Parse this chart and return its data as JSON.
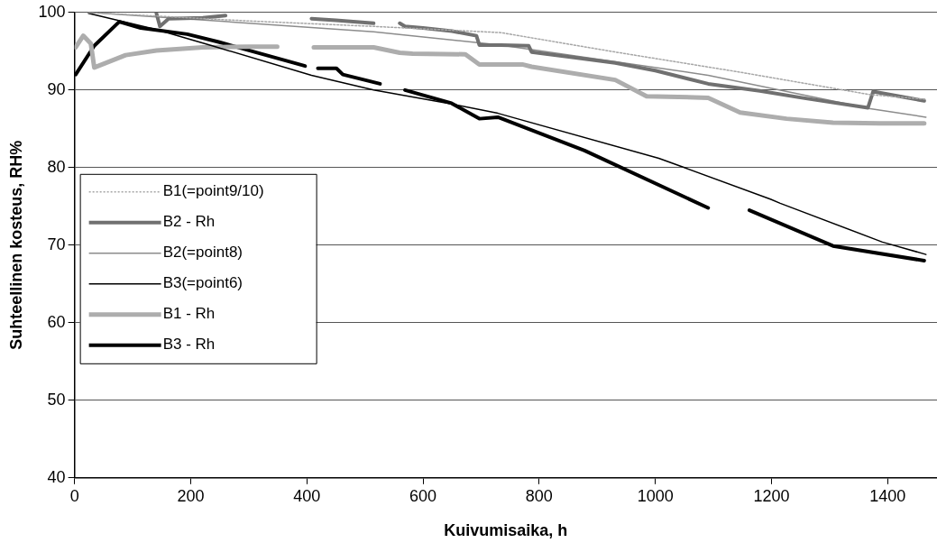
{
  "chart_data": {
    "type": "line",
    "xlabel": "Kuivumisaika, h",
    "ylabel": "Suhteellinen kosteus, RH%",
    "xlim": [
      0,
      1485
    ],
    "xticks": [
      0,
      200,
      400,
      600,
      800,
      1000,
      1200,
      1400
    ],
    "ylim": [
      40,
      100
    ],
    "yticks": [
      40,
      50,
      60,
      70,
      80,
      90,
      100
    ],
    "grid": "y",
    "legend": "left",
    "marker": "none",
    "series": [
      {
        "name": "B1(=point9/10)",
        "color": "#a6a6a6",
        "line_style": "dotted",
        "x": [
          24,
          300,
          515,
          734,
          931,
          1146,
          1370,
          1466
        ],
        "values": [
          100,
          98.9,
          98.2,
          97.4,
          94.9,
          92.3,
          89.4,
          88.8
        ]
      },
      {
        "name": "B2 - Rh",
        "color": "#707070",
        "line_style": "solid",
        "x": [
          141,
          147,
          162,
          221,
          260,
          300,
          408,
          450,
          515,
          540,
          560,
          569,
          600,
          650,
          692,
          697,
          734,
          782,
          787,
          860,
          931,
          1000,
          1091,
          1180,
          1252,
          1366,
          1375,
          1420,
          1463
        ],
        "values": [
          99.9,
          98.2,
          99.2,
          99.3,
          99.6,
          null,
          99.2,
          99,
          98.6,
          null,
          98.6,
          98.2,
          98,
          97.6,
          97,
          95.8,
          95.8,
          95.7,
          94.9,
          94.2,
          93.5,
          92.5,
          90.8,
          89.9,
          89,
          87.7,
          89.8,
          89.2,
          88.6
        ]
      },
      {
        "name": "B2(=point8)",
        "color": "#8c8c8c",
        "line_style": "solid",
        "x": [
          24,
          264,
          515,
          734,
          798,
          1091,
          1370,
          1466
        ],
        "values": [
          100,
          98.8,
          97.5,
          95.8,
          95.1,
          91.9,
          87.6,
          86.5
        ]
      },
      {
        "name": "B3(=point6)",
        "color": "#000000",
        "line_style": "solid",
        "x": [
          24,
          141,
          237,
          408,
          515,
          649,
          729,
          1006,
          1050,
          1199,
          1215,
          1391,
          1466
        ],
        "values": [
          99.9,
          97.8,
          95.7,
          91.9,
          90,
          88.2,
          87,
          81.2,
          80,
          75.9,
          75.4,
          70.4,
          68.8
        ]
      },
      {
        "name": "B1 - Rh",
        "color": "#adadad",
        "line_style": "solid",
        "x": [
          2,
          15,
          28,
          34,
          88,
          141,
          221,
          301,
          349,
          380,
          412,
          515,
          560,
          582,
          673,
          697,
          771,
          787,
          931,
          985,
          1091,
          1146,
          1226,
          1306,
          1386,
          1463
        ],
        "values": [
          95.5,
          97,
          96,
          92.9,
          94.5,
          95.1,
          95.5,
          95.6,
          95.6,
          null,
          95.5,
          95.5,
          94.8,
          94.7,
          94.6,
          93.3,
          93.3,
          93,
          91.3,
          89.2,
          89,
          87.1,
          86.3,
          85.8,
          85.7,
          85.7
        ]
      },
      {
        "name": "B3 - Rh",
        "color": "#000000",
        "line_style": "solid",
        "x": [
          2,
          34,
          77,
          114,
          194,
          248,
          397,
          408,
          419,
          451,
          462,
          526,
          535,
          569,
          649,
          697,
          729,
          878,
          1091,
          1151,
          1162,
          1306,
          1463
        ],
        "values": [
          92,
          95.7,
          98.8,
          98,
          97.2,
          96.2,
          93.1,
          null,
          92.8,
          92.8,
          92,
          90.8,
          null,
          90,
          88.3,
          86.3,
          86.5,
          82.2,
          74.8,
          null,
          74.5,
          69.9,
          68
        ]
      }
    ]
  }
}
